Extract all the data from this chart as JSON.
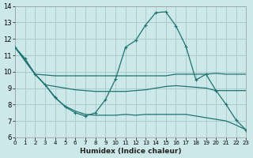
{
  "xlabel": "Humidex (Indice chaleur)",
  "background_color": "#cde8e8",
  "line_color": "#1f7272",
  "grid_color": "#aacccc",
  "xlim": [
    0,
    23
  ],
  "ylim": [
    6,
    14
  ],
  "xticks": [
    0,
    1,
    2,
    3,
    4,
    5,
    6,
    7,
    8,
    9,
    10,
    11,
    12,
    13,
    14,
    15,
    16,
    17,
    18,
    19,
    20,
    21,
    22,
    23
  ],
  "yticks": [
    6,
    7,
    8,
    9,
    10,
    11,
    12,
    13,
    14
  ],
  "curve_x": [
    0,
    1,
    2,
    3,
    4,
    5,
    6,
    7,
    8,
    9,
    10,
    11,
    12,
    13,
    14,
    15,
    16,
    17,
    18,
    19,
    20,
    21,
    22,
    23
  ],
  "curve_y": [
    11.5,
    10.8,
    9.85,
    9.2,
    8.45,
    7.85,
    7.5,
    7.3,
    7.5,
    8.3,
    9.55,
    11.5,
    11.9,
    12.85,
    13.6,
    13.65,
    12.8,
    11.55,
    9.5,
    9.85,
    8.85,
    8.0,
    7.05,
    6.45
  ],
  "line1_x": [
    0,
    2,
    3,
    4,
    5,
    6,
    7,
    8,
    9,
    10,
    11,
    12,
    13,
    14,
    15,
    16,
    17,
    18,
    19,
    20,
    21,
    22,
    23
  ],
  "line1_y": [
    11.5,
    9.85,
    9.8,
    9.75,
    9.75,
    9.75,
    9.75,
    9.75,
    9.75,
    9.75,
    9.75,
    9.75,
    9.75,
    9.75,
    9.75,
    9.85,
    9.85,
    9.85,
    9.85,
    9.9,
    9.85,
    9.85,
    9.85
  ],
  "line2_x": [
    0,
    2,
    3,
    4,
    5,
    6,
    7,
    8,
    9,
    10,
    11,
    12,
    13,
    14,
    15,
    16,
    17,
    18,
    19,
    20,
    21,
    22,
    23
  ],
  "line2_y": [
    11.5,
    9.85,
    9.2,
    9.1,
    9.0,
    8.9,
    8.85,
    8.8,
    8.8,
    8.8,
    8.8,
    8.85,
    8.9,
    9.0,
    9.1,
    9.15,
    9.1,
    9.05,
    9.0,
    8.85,
    8.85,
    8.85,
    8.85
  ],
  "line3_x": [
    0,
    2,
    3,
    4,
    5,
    6,
    7,
    8,
    9,
    10,
    11,
    12,
    13,
    14,
    15,
    16,
    17,
    18,
    19,
    20,
    21,
    22,
    23
  ],
  "line3_y": [
    11.5,
    9.85,
    9.2,
    8.4,
    7.9,
    7.6,
    7.4,
    7.35,
    7.35,
    7.35,
    7.4,
    7.35,
    7.4,
    7.4,
    7.4,
    7.4,
    7.4,
    7.3,
    7.2,
    7.1,
    7.0,
    6.75,
    6.45
  ]
}
